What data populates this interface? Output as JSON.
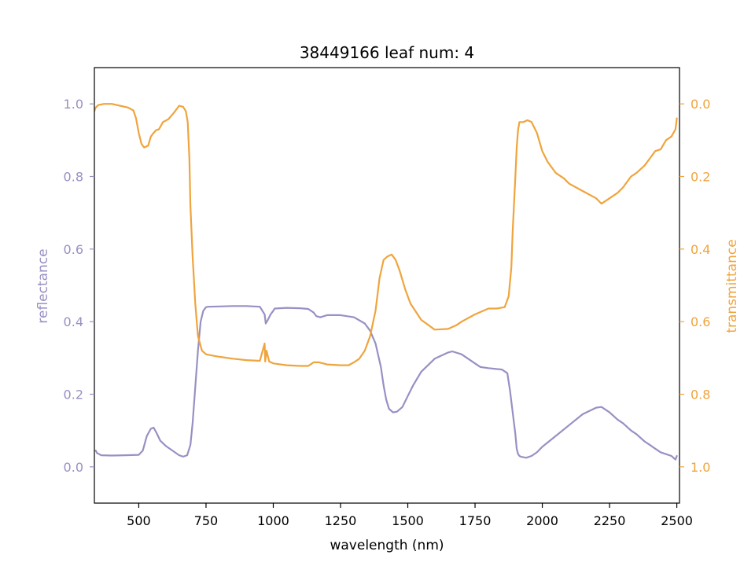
{
  "chart_data": {
    "type": "line",
    "title": "38449166 leaf num: 4",
    "xlabel": "wavelength (nm)",
    "ylabel_left": "reflectance",
    "ylabel_right": "transmittance",
    "xlim": [
      335,
      2510
    ],
    "ylim_left": [
      -0.1,
      1.1
    ],
    "ylim_right": [
      1.1,
      -0.1
    ],
    "right_axis_inverted": true,
    "x_ticks": [
      500,
      750,
      1000,
      1250,
      1500,
      1750,
      2000,
      2250,
      2500
    ],
    "y_ticks_left": [
      0.0,
      0.2,
      0.4,
      0.6,
      0.8,
      1.0
    ],
    "y_ticks_right": [
      0.0,
      0.2,
      0.4,
      0.6,
      0.8,
      1.0
    ],
    "grid": false,
    "colors": {
      "reflectance": "#9890c4",
      "transmittance": "#f0a43c"
    },
    "series": [
      {
        "axis": "left",
        "x": [
          340,
          345,
          360,
          400,
          450,
          500,
          515,
          530,
          545,
          555,
          565,
          580,
          600,
          625,
          650,
          665,
          680,
          692,
          700,
          710,
          720,
          730,
          740,
          750,
          760,
          800,
          850,
          900,
          950,
          968,
          972,
          980,
          990,
          1000,
          1005,
          1050,
          1100,
          1130,
          1150,
          1160,
          1175,
          1200,
          1250,
          1300,
          1340,
          1360,
          1380,
          1400,
          1410,
          1420,
          1430,
          1445,
          1460,
          1480,
          1500,
          1520,
          1550,
          1600,
          1650,
          1665,
          1700,
          1750,
          1770,
          1800,
          1850,
          1870,
          1880,
          1890,
          1900,
          1905,
          1910,
          1915,
          1920,
          1940,
          1960,
          1980,
          2000,
          2050,
          2100,
          2150,
          2200,
          2220,
          2250,
          2280,
          2300,
          2330,
          2350,
          2380,
          2400,
          2420,
          2440,
          2460,
          2480,
          2495,
          2500
        ],
        "y": [
          0.045,
          0.038,
          0.032,
          0.031,
          0.032,
          0.033,
          0.045,
          0.085,
          0.105,
          0.108,
          0.095,
          0.072,
          0.058,
          0.045,
          0.032,
          0.028,
          0.032,
          0.06,
          0.12,
          0.22,
          0.32,
          0.4,
          0.43,
          0.44,
          0.441,
          0.442,
          0.443,
          0.443,
          0.441,
          0.42,
          0.395,
          0.405,
          0.42,
          0.43,
          0.436,
          0.438,
          0.437,
          0.435,
          0.425,
          0.415,
          0.412,
          0.418,
          0.418,
          0.412,
          0.395,
          0.375,
          0.34,
          0.275,
          0.225,
          0.185,
          0.16,
          0.15,
          0.152,
          0.165,
          0.195,
          0.225,
          0.262,
          0.298,
          0.315,
          0.318,
          0.31,
          0.285,
          0.275,
          0.272,
          0.268,
          0.258,
          0.21,
          0.15,
          0.09,
          0.05,
          0.035,
          0.03,
          0.028,
          0.025,
          0.03,
          0.04,
          0.055,
          0.085,
          0.115,
          0.145,
          0.163,
          0.165,
          0.15,
          0.13,
          0.12,
          0.1,
          0.09,
          0.07,
          0.06,
          0.05,
          0.04,
          0.035,
          0.03,
          0.02,
          0.03
        ]
      },
      {
        "axis": "right",
        "x": [
          335,
          340,
          350,
          370,
          400,
          430,
          460,
          480,
          490,
          500,
          510,
          520,
          535,
          545,
          555,
          565,
          575,
          590,
          610,
          630,
          650,
          665,
          675,
          682,
          688,
          692,
          700,
          710,
          720,
          735,
          750,
          770,
          800,
          850,
          900,
          950,
          968,
          970,
          975,
          985,
          1000,
          1050,
          1100,
          1130,
          1150,
          1170,
          1200,
          1250,
          1280,
          1300,
          1320,
          1340,
          1360,
          1380,
          1395,
          1410,
          1425,
          1440,
          1455,
          1470,
          1490,
          1510,
          1550,
          1600,
          1650,
          1680,
          1700,
          1750,
          1800,
          1830,
          1860,
          1875,
          1885,
          1890,
          1900,
          1905,
          1910,
          1915,
          1920,
          1930,
          1945,
          1960,
          1980,
          2000,
          2020,
          2050,
          2080,
          2100,
          2150,
          2200,
          2220,
          2250,
          2280,
          2300,
          2330,
          2350,
          2380,
          2400,
          2420,
          2440,
          2460,
          2480,
          2495,
          2500
        ],
        "y": [
          0.02,
          0.01,
          0.003,
          0.0,
          0.0,
          0.005,
          0.01,
          0.018,
          0.04,
          0.08,
          0.11,
          0.12,
          0.115,
          0.09,
          0.08,
          0.072,
          0.07,
          0.05,
          0.042,
          0.025,
          0.005,
          0.008,
          0.02,
          0.05,
          0.15,
          0.28,
          0.42,
          0.55,
          0.64,
          0.68,
          0.69,
          0.693,
          0.697,
          0.702,
          0.706,
          0.708,
          0.66,
          0.71,
          0.68,
          0.71,
          0.715,
          0.72,
          0.722,
          0.722,
          0.712,
          0.712,
          0.718,
          0.72,
          0.72,
          0.712,
          0.702,
          0.68,
          0.64,
          0.57,
          0.48,
          0.43,
          0.42,
          0.415,
          0.43,
          0.46,
          0.51,
          0.55,
          0.595,
          0.622,
          0.62,
          0.61,
          0.6,
          0.58,
          0.564,
          0.564,
          0.56,
          0.53,
          0.45,
          0.35,
          0.2,
          0.12,
          0.07,
          0.05,
          0.05,
          0.05,
          0.045,
          0.05,
          0.08,
          0.13,
          0.16,
          0.19,
          0.205,
          0.22,
          0.24,
          0.26,
          0.275,
          0.26,
          0.245,
          0.23,
          0.2,
          0.19,
          0.17,
          0.15,
          0.13,
          0.125,
          0.1,
          0.09,
          0.07,
          0.04
        ]
      }
    ]
  }
}
